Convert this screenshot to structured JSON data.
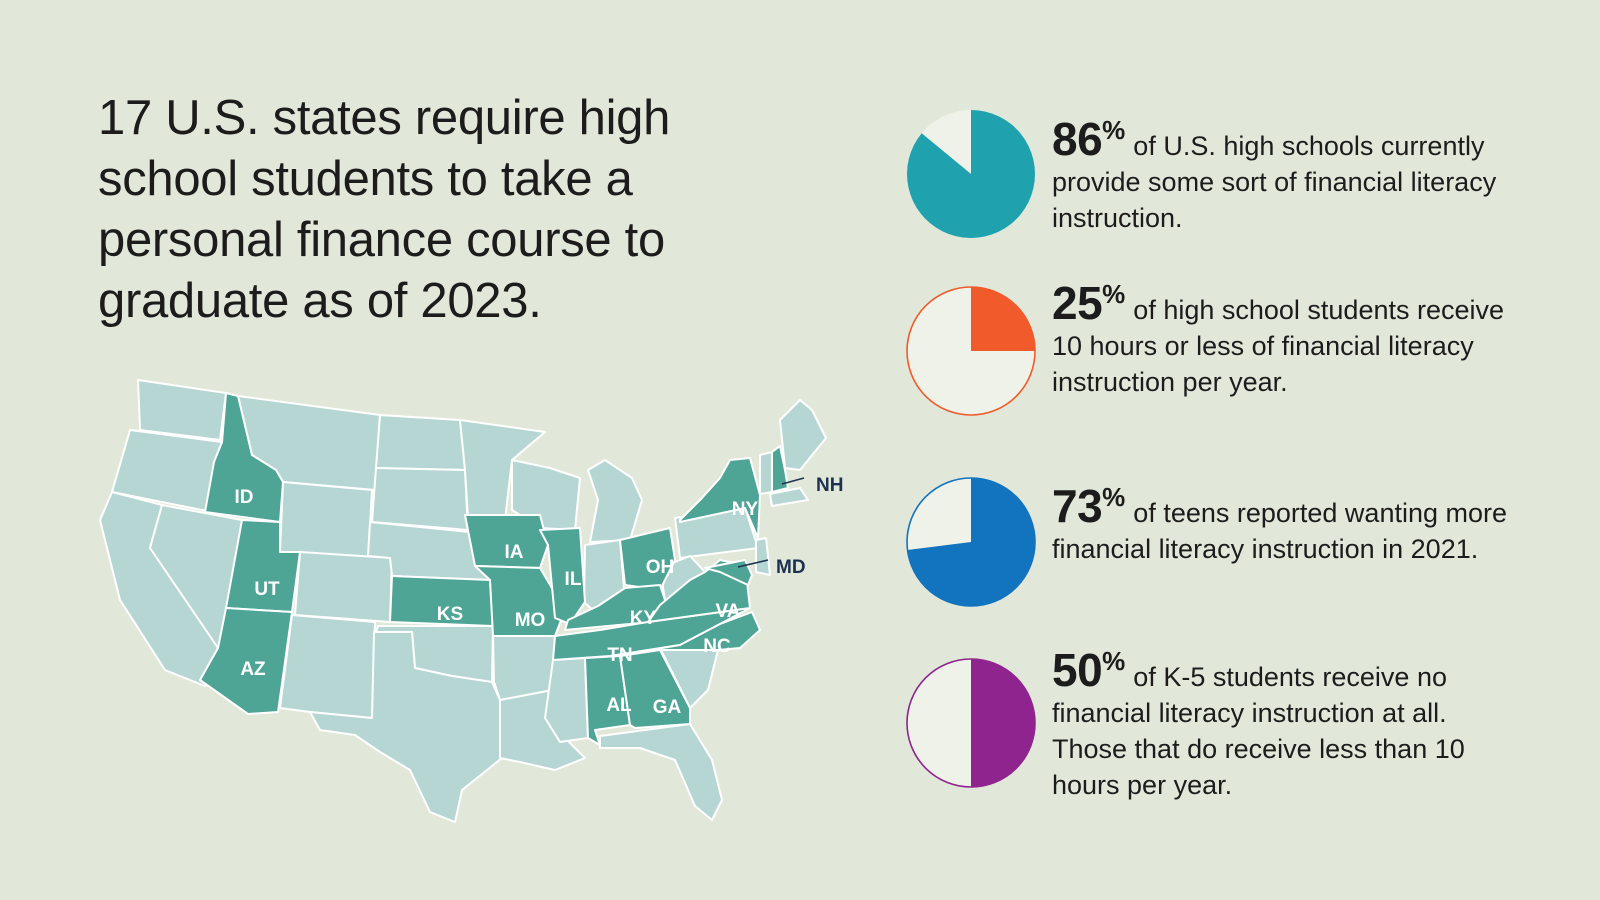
{
  "headline": "17 U.S. states require high school students to take a personal finance course to graduate as of 2023.",
  "colors": {
    "background": "#e1e8da",
    "state_default": "#b6d6d3",
    "state_required": "#4ea596",
    "state_border": "#ffffff",
    "callout_text": "#1d3150"
  },
  "map": {
    "required_state_labels": [
      "ID",
      "UT",
      "AZ",
      "KS",
      "IA",
      "MO",
      "IL",
      "OH",
      "KY",
      "TN",
      "AL",
      "GA",
      "NC",
      "VA",
      "NY"
    ],
    "callout_labels": [
      "NH",
      "MD"
    ]
  },
  "stats": [
    {
      "id": "stat-1",
      "value": 86,
      "percent_label": "86",
      "percent_sign": "%",
      "text": "of U.S. high schools currently provide some sort of financial literacy instruction.",
      "color": "#1fa2ad",
      "fill_remainder": "#eef2e9",
      "outlined": false
    },
    {
      "id": "stat-2",
      "value": 25,
      "percent_label": "25",
      "percent_sign": "%",
      "text": "of high school students receive 10 hours or less of financial literacy instruction per year.",
      "color": "#f15a2b",
      "fill_remainder": "#eef2e9",
      "outlined": true
    },
    {
      "id": "stat-3",
      "value": 73,
      "percent_label": "73",
      "percent_sign": "%",
      "text": "of teens reported wanting more financial literacy instruction in 2021.",
      "color": "#1273be",
      "fill_remainder": "#eef2e9",
      "outlined": true
    },
    {
      "id": "stat-4",
      "value": 50,
      "percent_label": "50",
      "percent_sign": "%",
      "text": "of K-5 students receive no financial literacy instruction at all. Those that do receive less than 10 hours per year.",
      "color": "#8f248e",
      "fill_remainder": "#eef2e9",
      "outlined": true
    }
  ]
}
